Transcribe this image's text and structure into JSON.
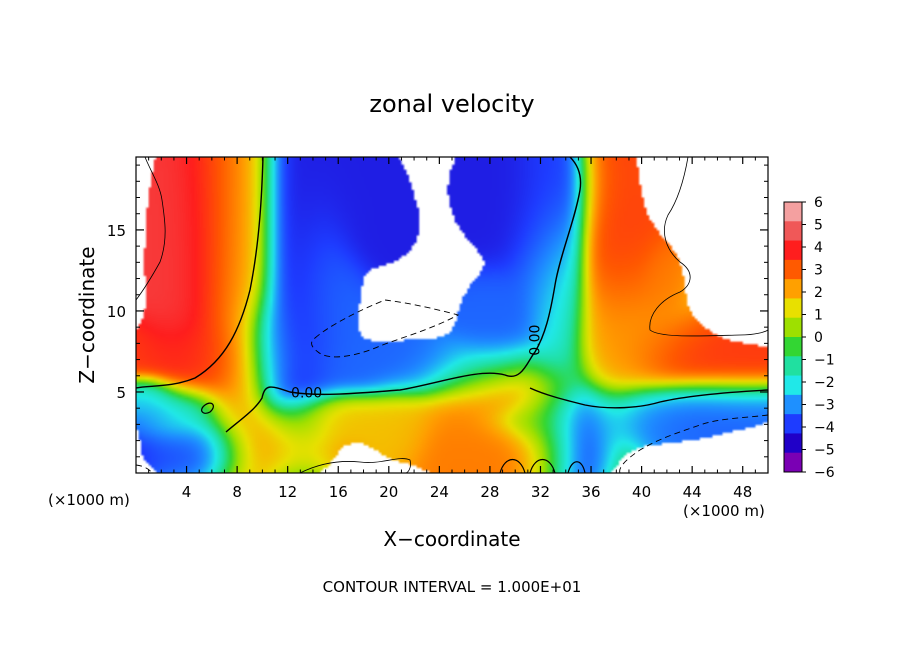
{
  "chart_data": {
    "type": "heatmap",
    "title": "zonal velocity",
    "xlabel": "X−coordinate",
    "ylabel": "Z−coordinate",
    "x_unit_left": "(×1000 m)",
    "x_unit_right": "(×1000 m)",
    "footer": "CONTOUR INTERVAL = 1.000E+01",
    "xlim": [
      0,
      50
    ],
    "ylim": [
      0,
      19.5
    ],
    "x_ticks": [
      4,
      8,
      12,
      16,
      20,
      24,
      28,
      32,
      36,
      40,
      44,
      48
    ],
    "y_ticks": [
      5,
      10,
      15
    ],
    "contour_labels": [
      {
        "text": "0.00",
        "x": 13.5,
        "y": 4.9,
        "rotate": 0
      },
      {
        "text": "0.00",
        "x": 31.6,
        "y": 8.2,
        "rotate": -90
      }
    ],
    "colorbar": {
      "labels": [
        "6",
        "5",
        "4",
        "3",
        "2",
        "1",
        "0",
        "−1",
        "−2",
        "−3",
        "−4",
        "−5",
        "−6"
      ],
      "colors": [
        "#f4a0a0",
        "#f05858",
        "#ff1e1e",
        "#ff5a00",
        "#ffa000",
        "#e8e000",
        "#9ee000",
        "#33d633",
        "#20e0a0",
        "#20e8e8",
        "#1e90ff",
        "#1e3cff",
        "#2000c8",
        "#7a00b4"
      ]
    },
    "field": {
      "description_values": "u ~ positive in x 2–11 shear band, x 37–44 band, lower layer x 24–36; negative in x 10–15 column, x 28–37 column",
      "blobs": [
        {
          "cx": 3.5,
          "cz": 13,
          "sx": 1.6,
          "sz": 5,
          "v": 5
        },
        {
          "cx": 6.5,
          "cz": 14,
          "sx": 1.8,
          "sz": 6,
          "v": 4
        },
        {
          "cx": 8.5,
          "cz": 12,
          "sx": 1.5,
          "sz": 7,
          "v": 2
        },
        {
          "cx": 4,
          "cz": 7,
          "sx": 3,
          "sz": 1.3,
          "v": 4
        },
        {
          "cx": 12.5,
          "cz": 13,
          "sx": 1.6,
          "sz": 6.5,
          "v": -5
        },
        {
          "cx": 14.5,
          "cz": 11,
          "sx": 1.8,
          "sz": 3,
          "v": -4
        },
        {
          "cx": 17.5,
          "cz": 17,
          "sx": 2.4,
          "sz": 2.2,
          "v": -5
        },
        {
          "cx": 19.5,
          "cz": 15,
          "sx": 1.4,
          "sz": 1,
          "v": -5
        },
        {
          "cx": 11,
          "cz": 8,
          "sx": 1.4,
          "sz": 1.8,
          "v": -4
        },
        {
          "cx": 23,
          "cz": 6.3,
          "sx": 5.5,
          "sz": 1.1,
          "v": -4
        },
        {
          "cx": 28.5,
          "cz": 9,
          "sx": 1.8,
          "sz": 1.8,
          "v": -4
        },
        {
          "cx": 30,
          "cz": 17.5,
          "sx": 3,
          "sz": 2.5,
          "v": -5
        },
        {
          "cx": 32.5,
          "cz": 14,
          "sx": 1.5,
          "sz": 4.5,
          "v": -4
        },
        {
          "cx": 33.5,
          "cz": 10,
          "sx": 1.2,
          "sz": 3,
          "v": -2
        },
        {
          "cx": 35,
          "cz": 2.5,
          "sx": 1.8,
          "sz": 1.8,
          "v": -5
        },
        {
          "cx": 39,
          "cz": 3.5,
          "sx": 5,
          "sz": 1.0,
          "v": -4
        },
        {
          "cx": 46,
          "cz": 4.5,
          "sx": 4,
          "sz": 0.8,
          "v": -4
        },
        {
          "cx": 3,
          "cz": 4,
          "sx": 2,
          "sz": 0.9,
          "v": -4
        },
        {
          "cx": 4.5,
          "cz": 1.5,
          "sx": 2.3,
          "sz": 1.1,
          "v": -5
        },
        {
          "cx": 1,
          "cz": 4.8,
          "sx": 1.2,
          "sz": 0.6,
          "v": -3
        },
        {
          "cx": 37.5,
          "cz": 14,
          "sx": 1.4,
          "sz": 6,
          "v": 4
        },
        {
          "cx": 39.5,
          "cz": 11,
          "sx": 1.6,
          "sz": 2.5,
          "v": 4
        },
        {
          "cx": 41.5,
          "cz": 7.5,
          "sx": 2.3,
          "sz": 1.3,
          "v": 4
        },
        {
          "cx": 46.5,
          "cz": 6.3,
          "sx": 3.5,
          "sz": 1.0,
          "v": 4
        },
        {
          "cx": 41.5,
          "cz": 11.5,
          "sx": 0.9,
          "sz": 1.2,
          "v": 3
        },
        {
          "cx": 38.5,
          "cz": 8.5,
          "sx": 2.5,
          "sz": 2.5,
          "v": 1
        },
        {
          "cx": 29,
          "cz": 5.3,
          "sx": 2.6,
          "sz": 1.2,
          "v": 4
        },
        {
          "cx": 25,
          "cz": 3,
          "sx": 2,
          "sz": 1.6,
          "v": 3
        },
        {
          "cx": 32.5,
          "cz": 3.3,
          "sx": 1.6,
          "sz": 2.0,
          "v": 2
        },
        {
          "cx": 28,
          "cz": 1.3,
          "sx": 2.5,
          "sz": 1.1,
          "v": 3
        },
        {
          "cx": 17.5,
          "cz": 3.5,
          "sx": 3.5,
          "sz": 0.8,
          "v": 2
        },
        {
          "cx": 11.5,
          "cz": 1.8,
          "sx": 2.5,
          "sz": 1.2,
          "v": 3
        },
        {
          "cx": 21,
          "cz": 3,
          "sx": 1.5,
          "sz": 1.2,
          "v": 2
        }
      ]
    }
  }
}
